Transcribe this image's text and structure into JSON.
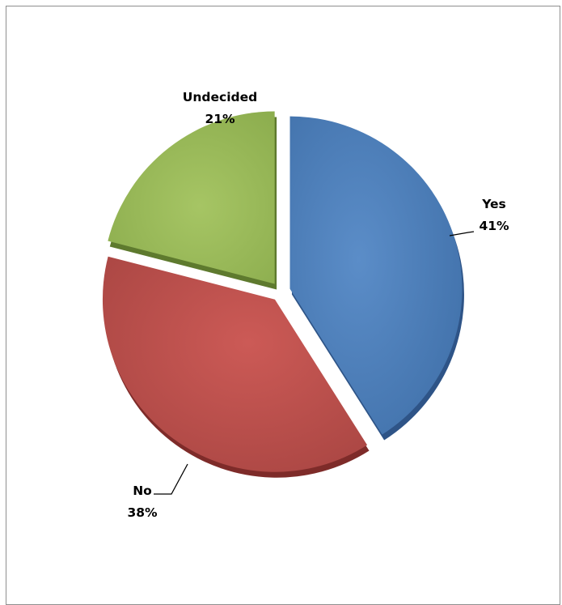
{
  "chart_data": {
    "type": "pie",
    "title": "",
    "exploded": true,
    "style": "3d",
    "legend": "none",
    "slices": [
      {
        "label": "Yes",
        "value": 41,
        "percent_label": "41%",
        "color": "#4F81BD",
        "side_color": "#2E5487"
      },
      {
        "label": "No",
        "value": 38,
        "percent_label": "38%",
        "color": "#C0504D",
        "side_color": "#7E2B29"
      },
      {
        "label": "Undecided",
        "value": 21,
        "percent_label": "21%",
        "color": "#9BBB59",
        "side_color": "#5E7A2E"
      }
    ]
  }
}
